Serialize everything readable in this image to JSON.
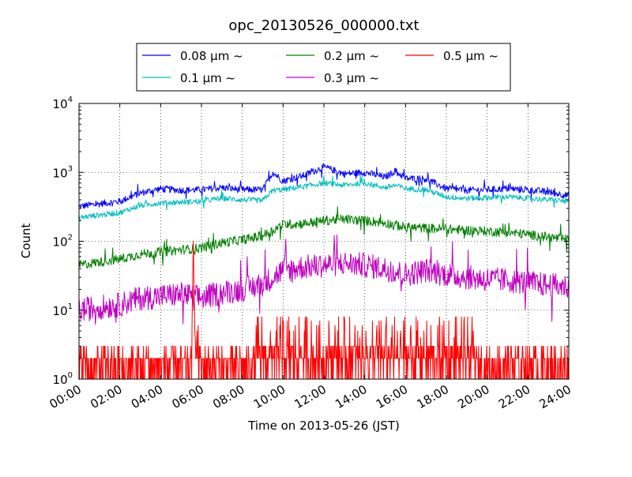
{
  "chart_data": {
    "type": "line",
    "title": "opc_20130526_000000.txt",
    "xlabel": "Time on 2013-05-26 (JST)",
    "ylabel": "Count",
    "yscale": "log",
    "ylim": [
      1,
      10000
    ],
    "xlim": [
      "00:00",
      "24:00"
    ],
    "grid": true,
    "legend_position": "top",
    "x_ticks": [
      "00:00",
      "02:00",
      "04:00",
      "06:00",
      "08:00",
      "10:00",
      "12:00",
      "14:00",
      "16:00",
      "18:00",
      "20:00",
      "22:00",
      "24:00"
    ],
    "y_ticks": [
      {
        "base": "10",
        "exp": "0"
      },
      {
        "base": "10",
        "exp": "1"
      },
      {
        "base": "10",
        "exp": "2"
      },
      {
        "base": "10",
        "exp": "3"
      },
      {
        "base": "10",
        "exp": "4"
      }
    ],
    "series": [
      {
        "name": "0.08 μm ~",
        "color": "#0000ff",
        "x": [
          "00:00",
          "01:00",
          "02:00",
          "03:00",
          "04:00",
          "05:00",
          "06:00",
          "07:00",
          "08:00",
          "09:00",
          "09:30",
          "10:00",
          "11:00",
          "12:00",
          "13:00",
          "14:00",
          "15:00",
          "15:30",
          "16:00",
          "17:00",
          "18:00",
          "19:00",
          "20:00",
          "21:00",
          "22:00",
          "23:00",
          "24:00"
        ],
        "y": [
          320,
          350,
          380,
          500,
          580,
          550,
          560,
          600,
          560,
          560,
          1000,
          750,
          900,
          1200,
          950,
          1000,
          850,
          1050,
          820,
          800,
          580,
          550,
          560,
          580,
          560,
          520,
          460
        ]
      },
      {
        "name": "0.1 μm ~",
        "color": "#00bfbf",
        "x": [
          "00:00",
          "01:00",
          "02:00",
          "03:00",
          "04:00",
          "05:00",
          "06:00",
          "07:00",
          "08:00",
          "09:00",
          "09:30",
          "10:00",
          "11:00",
          "12:00",
          "13:00",
          "14:00",
          "15:00",
          "15:30",
          "16:00",
          "17:00",
          "18:00",
          "19:00",
          "20:00",
          "21:00",
          "22:00",
          "23:00",
          "24:00"
        ],
        "y": [
          220,
          240,
          260,
          330,
          360,
          370,
          380,
          420,
          400,
          390,
          550,
          560,
          620,
          700,
          650,
          700,
          600,
          650,
          580,
          560,
          440,
          420,
          430,
          440,
          420,
          400,
          380
        ]
      },
      {
        "name": "0.2 μm ~",
        "color": "#008000",
        "x": [
          "00:00",
          "01:00",
          "02:00",
          "03:00",
          "04:00",
          "05:00",
          "06:00",
          "07:00",
          "08:00",
          "09:00",
          "10:00",
          "11:00",
          "12:00",
          "13:00",
          "14:00",
          "15:00",
          "16:00",
          "17:00",
          "18:00",
          "19:00",
          "20:00",
          "21:00",
          "22:00",
          "23:00",
          "24:00"
        ],
        "y": [
          45,
          50,
          55,
          65,
          70,
          75,
          80,
          95,
          105,
          120,
          175,
          180,
          200,
          210,
          200,
          185,
          160,
          155,
          150,
          145,
          140,
          135,
          125,
          115,
          105
        ]
      },
      {
        "name": "0.3 μm ~",
        "color": "#bf00bf",
        "x": [
          "00:00",
          "01:00",
          "02:00",
          "03:00",
          "04:00",
          "05:00",
          "06:00",
          "07:00",
          "08:00",
          "09:00",
          "10:00",
          "11:00",
          "12:00",
          "13:00",
          "14:00",
          "15:00",
          "16:00",
          "17:00",
          "18:00",
          "19:00",
          "20:00",
          "21:00",
          "22:00",
          "23:00",
          "24:00"
        ],
        "y": [
          10,
          11,
          12,
          15,
          16,
          17,
          15,
          18,
          20,
          24,
          38,
          42,
          45,
          48,
          45,
          40,
          33,
          38,
          33,
          30,
          28,
          27,
          25,
          23,
          22
        ]
      },
      {
        "name": "0.5 μm ~",
        "color": "#ff0000",
        "x": [
          "00:00",
          "02:00",
          "04:00",
          "05:30",
          "05:36",
          "05:42",
          "06:00",
          "08:00",
          "10:00",
          "12:00",
          "14:00",
          "16:00",
          "18:00",
          "20:00",
          "22:00",
          "24:00"
        ],
        "y": [
          1,
          1,
          1,
          1,
          100,
          2,
          1,
          1,
          2,
          2,
          2,
          2,
          2,
          1,
          1,
          1
        ]
      }
    ]
  }
}
